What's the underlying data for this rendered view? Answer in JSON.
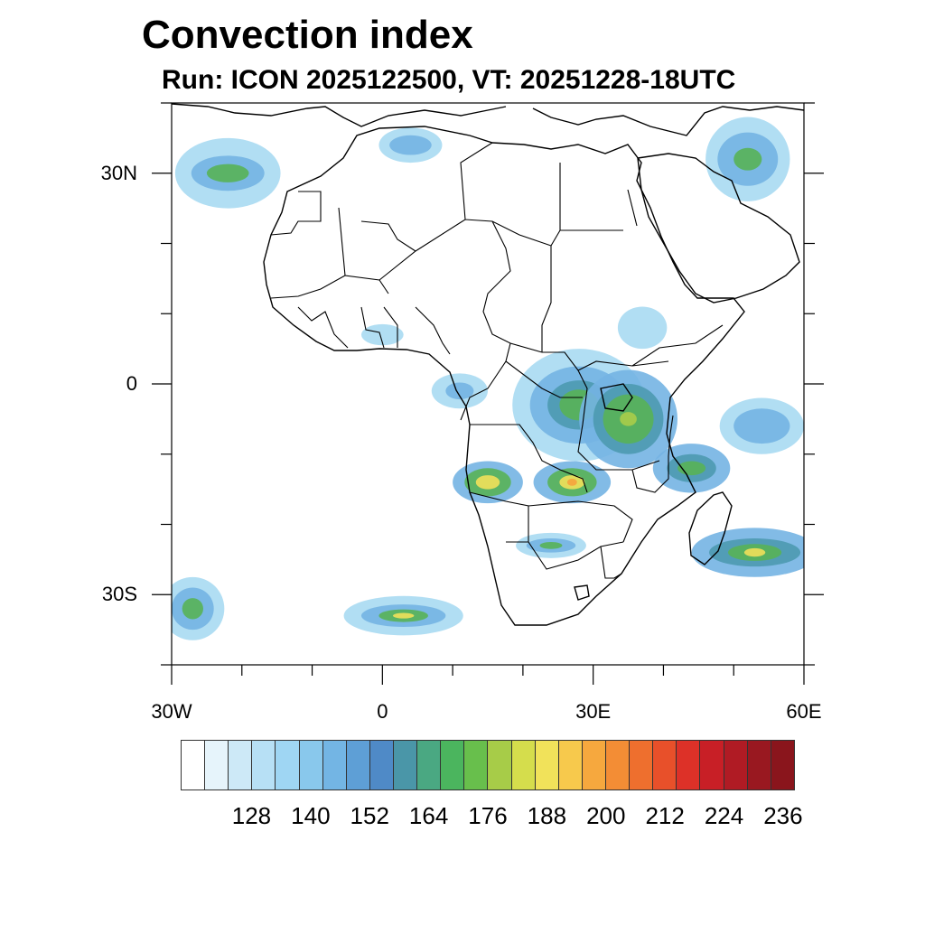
{
  "header": {
    "title": "Convection index",
    "subtitle": "Run: ICON 2025122500,  VT: 20251228-18UTC"
  },
  "map": {
    "lat_labels": [
      "30N",
      "0",
      "30S"
    ],
    "lon_labels": [
      "30W",
      "0",
      "30E",
      "60E"
    ],
    "lat_values": [
      30,
      0,
      -30
    ],
    "lon_values": [
      -30,
      0,
      30,
      60
    ]
  },
  "colorbar": {
    "tick_labels": [
      "128",
      "140",
      "152",
      "164",
      "176",
      "188",
      "200",
      "212",
      "224",
      "236"
    ],
    "colors": [
      "#ffffff",
      "#e6f4fb",
      "#cde9f7",
      "#b7e0f5",
      "#9fd6f3",
      "#89c8ec",
      "#73b5e4",
      "#5e9fd6",
      "#4f8ac7",
      "#4a96a8",
      "#4aa882",
      "#4bb55e",
      "#68bf4c",
      "#a7cc48",
      "#d5dd4c",
      "#f1e25a",
      "#f7c94c",
      "#f6a83e",
      "#f38d35",
      "#ee6f2e",
      "#e8502a",
      "#dd3128",
      "#c81f26",
      "#b01b24",
      "#991820",
      "#8a151c"
    ]
  },
  "fields": {
    "colors": {
      "light": "#a9daf2",
      "mid": "#74b4e3",
      "teal": "#4d9ab0",
      "green": "#58b257",
      "lime": "#aacd4a",
      "yellow": "#f1e05a",
      "orange": "#f6a33d"
    },
    "patches": [
      {
        "name": "north-atlantic-band",
        "lon": -22,
        "lat": 30,
        "layers": [
          [
            7.5,
            5.0,
            "light"
          ],
          [
            5.2,
            2.5,
            "mid"
          ],
          [
            3.0,
            1.3,
            "green"
          ]
        ]
      },
      {
        "name": "mediterranean-patch",
        "lon": 4,
        "lat": 34,
        "layers": [
          [
            4.5,
            2.5,
            "light"
          ],
          [
            3.0,
            1.4,
            "mid"
          ]
        ]
      },
      {
        "name": "middle-east-patch",
        "lon": 52,
        "lat": 32,
        "layers": [
          [
            6.0,
            6.0,
            "light"
          ],
          [
            4.3,
            3.8,
            "mid"
          ],
          [
            2.0,
            1.6,
            "green"
          ]
        ]
      },
      {
        "name": "congo-band",
        "lon": 28,
        "lat": -3,
        "layers": [
          [
            9.5,
            8.0,
            "light"
          ],
          [
            7.0,
            5.5,
            "mid"
          ],
          [
            4.5,
            3.5,
            "teal"
          ],
          [
            2.8,
            2.2,
            "green"
          ]
        ]
      },
      {
        "name": "lake-victoria-cluster",
        "lon": 35,
        "lat": -5,
        "layers": [
          [
            7.0,
            7.0,
            "mid"
          ],
          [
            5.0,
            5.0,
            "teal"
          ],
          [
            3.6,
            3.5,
            "green"
          ],
          [
            1.2,
            1.0,
            "lime"
          ]
        ]
      },
      {
        "name": "mozambique-band",
        "lon": 44,
        "lat": -12,
        "layers": [
          [
            5.5,
            3.5,
            "mid"
          ],
          [
            3.5,
            2.0,
            "teal"
          ],
          [
            2.0,
            1.0,
            "green"
          ]
        ]
      },
      {
        "name": "zambia-cluster",
        "lon": 27,
        "lat": -14,
        "layers": [
          [
            5.5,
            3.0,
            "mid"
          ],
          [
            3.5,
            2.0,
            "green"
          ],
          [
            1.8,
            1.0,
            "yellow"
          ],
          [
            0.7,
            0.5,
            "orange"
          ]
        ]
      },
      {
        "name": "angola-cluster",
        "lon": 15,
        "lat": -14,
        "layers": [
          [
            5.0,
            3.0,
            "mid"
          ],
          [
            3.3,
            2.0,
            "green"
          ],
          [
            1.7,
            1.0,
            "yellow"
          ]
        ]
      },
      {
        "name": "botswana-patch",
        "lon": 24,
        "lat": -23,
        "layers": [
          [
            5.0,
            1.8,
            "light"
          ],
          [
            3.5,
            1.0,
            "mid"
          ],
          [
            1.6,
            0.5,
            "green"
          ]
        ]
      },
      {
        "name": "madagascar-band",
        "lon": 53,
        "lat": -24,
        "layers": [
          [
            9.0,
            3.5,
            "mid"
          ],
          [
            6.5,
            2.0,
            "teal"
          ],
          [
            3.8,
            1.2,
            "green"
          ],
          [
            1.5,
            0.6,
            "yellow"
          ]
        ]
      },
      {
        "name": "indian-ocean-patch",
        "lon": 54,
        "lat": -6,
        "layers": [
          [
            6.0,
            4.0,
            "light"
          ],
          [
            4.0,
            2.5,
            "mid"
          ]
        ]
      },
      {
        "name": "south-atlantic-band",
        "lon": 3,
        "lat": -33,
        "layers": [
          [
            8.5,
            2.8,
            "light"
          ],
          [
            6.0,
            1.6,
            "mid"
          ],
          [
            3.5,
            0.9,
            "green"
          ],
          [
            1.5,
            0.4,
            "yellow"
          ]
        ]
      },
      {
        "name": "southwest-corner-patch",
        "lon": -27,
        "lat": -32,
        "layers": [
          [
            4.5,
            4.5,
            "light"
          ],
          [
            3.0,
            3.0,
            "mid"
          ],
          [
            1.5,
            1.5,
            "green"
          ]
        ]
      },
      {
        "name": "gulf-of-guinea-patch",
        "lon": 11,
        "lat": -1,
        "layers": [
          [
            4.0,
            2.5,
            "light"
          ],
          [
            2.0,
            1.2,
            "mid"
          ]
        ]
      },
      {
        "name": "ethiopia-patch",
        "lon": 37,
        "lat": 8,
        "layers": [
          [
            3.5,
            3.0,
            "light"
          ]
        ]
      },
      {
        "name": "west-africa-patch",
        "lon": 0,
        "lat": 7,
        "layers": [
          [
            3.0,
            1.5,
            "light"
          ]
        ]
      }
    ]
  }
}
